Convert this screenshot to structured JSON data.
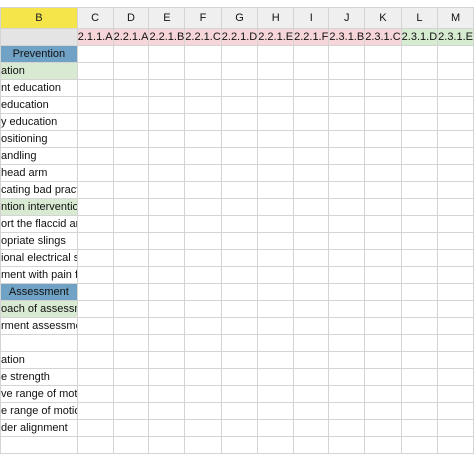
{
  "columns": [
    "B",
    "C",
    "D",
    "E",
    "F",
    "G",
    "H",
    "I",
    "J",
    "K",
    "L",
    "M"
  ],
  "codes": [
    {
      "text": "2.1.1.A",
      "group": "red"
    },
    {
      "text": "2.2.1.A",
      "group": "red"
    },
    {
      "text": "2.2.1.B",
      "group": "red"
    },
    {
      "text": "2.2.1.C",
      "group": "red"
    },
    {
      "text": "2.2.1.D",
      "group": "red"
    },
    {
      "text": "2.2.1.E",
      "group": "red"
    },
    {
      "text": "2.2.1.F",
      "group": "red"
    },
    {
      "text": "2.3.1.B",
      "group": "red"
    },
    {
      "text": "2.3.1.C",
      "group": "red"
    },
    {
      "text": "2.3.1.D",
      "group": "green"
    },
    {
      "text": "2.3.1.E",
      "group": "green"
    }
  ],
  "rows": [
    {
      "label": "Prevention",
      "style": "cat"
    },
    {
      "label": "ation",
      "style": "sub"
    },
    {
      "label": "nt education",
      "style": "plain"
    },
    {
      "label": "education",
      "style": "plain"
    },
    {
      "label": "y education",
      "style": "plain"
    },
    {
      "label": "ositioning",
      "style": "plain"
    },
    {
      "label": "andling",
      "style": "plain"
    },
    {
      "label": "head arm",
      "style": "plain"
    },
    {
      "label": "cating bad practice",
      "style": "plain"
    },
    {
      "label": "ntion intervention",
      "style": "sub"
    },
    {
      "label": "ort the flaccid arm",
      "style": "plain"
    },
    {
      "label": "opriate slings",
      "style": "plain"
    },
    {
      "label": "ional electrical stimulation",
      "style": "plain"
    },
    {
      "label": "ment with pain free limit",
      "style": "plain"
    },
    {
      "label": "Assessment",
      "style": "cat"
    },
    {
      "label": "oach of assessment",
      "style": "sub"
    },
    {
      "label": "rment assessment",
      "style": "plain"
    },
    {
      "label": "",
      "style": "plain"
    },
    {
      "label": "ation",
      "style": "plain"
    },
    {
      "label": "e strength",
      "style": "plain"
    },
    {
      "label": "ve range of motion (PROM)",
      "style": "plain"
    },
    {
      "label": "e range of motion (AROM)",
      "style": "plain"
    },
    {
      "label": "der alignment",
      "style": "plain"
    },
    {
      "label": "",
      "style": "plain"
    }
  ],
  "colors": {
    "selected_column_header": "#f6e54a",
    "category_fill": "#6fa2c4",
    "subcategory_fill": "#d9ead3",
    "red_code_fill": "#f7d6d9",
    "green_code_fill": "#d6ecd1"
  }
}
